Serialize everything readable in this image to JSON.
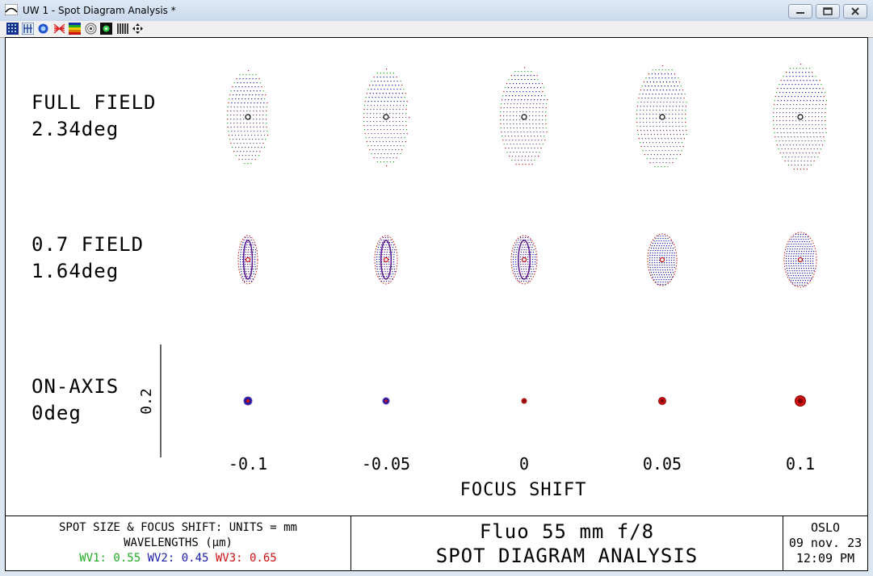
{
  "window": {
    "title": "UW 1 - Spot Diagram Analysis *",
    "buttons": [
      "minimize",
      "maximize",
      "close"
    ]
  },
  "toolbar": {
    "icons": [
      "spot-grid-icon",
      "ruler-icon",
      "lens-icon",
      "ray-fan-icon",
      "color-bars-icon",
      "target-icon",
      "spot-icon",
      "bars-icon",
      "arrows-icon"
    ]
  },
  "plot": {
    "rows": [
      {
        "line1": "FULL FIELD",
        "line2": "2.34deg"
      },
      {
        "line1": "0.7 FIELD",
        "line2": "1.64deg"
      },
      {
        "line1": "ON-AXIS",
        "line2": "0deg"
      }
    ],
    "scale_label": "0.2",
    "focus_shift": {
      "label": "FOCUS SHIFT",
      "ticks": [
        "-0.1",
        "-0.05",
        "0",
        "0.05",
        "0.1"
      ]
    }
  },
  "footer": {
    "left": {
      "line1": "SPOT SIZE & FOCUS SHIFT: UNITS = mm",
      "line2": "WAVELENGTHS (µm)",
      "wv1": "WV1: 0.55",
      "wv2": "WV2: 0.45",
      "wv3": "WV3: 0.65"
    },
    "center": {
      "line1": "Fluo 55 mm f/8",
      "line2": "SPOT DIAGRAM ANALYSIS"
    },
    "right": {
      "line1": "OSLO",
      "line2": "09 nov. 23",
      "line3": "12:09 PM"
    }
  },
  "colors": {
    "wv1": "#22aa22",
    "wv2": "#1a1aaa",
    "wv3": "#cc1111"
  }
}
